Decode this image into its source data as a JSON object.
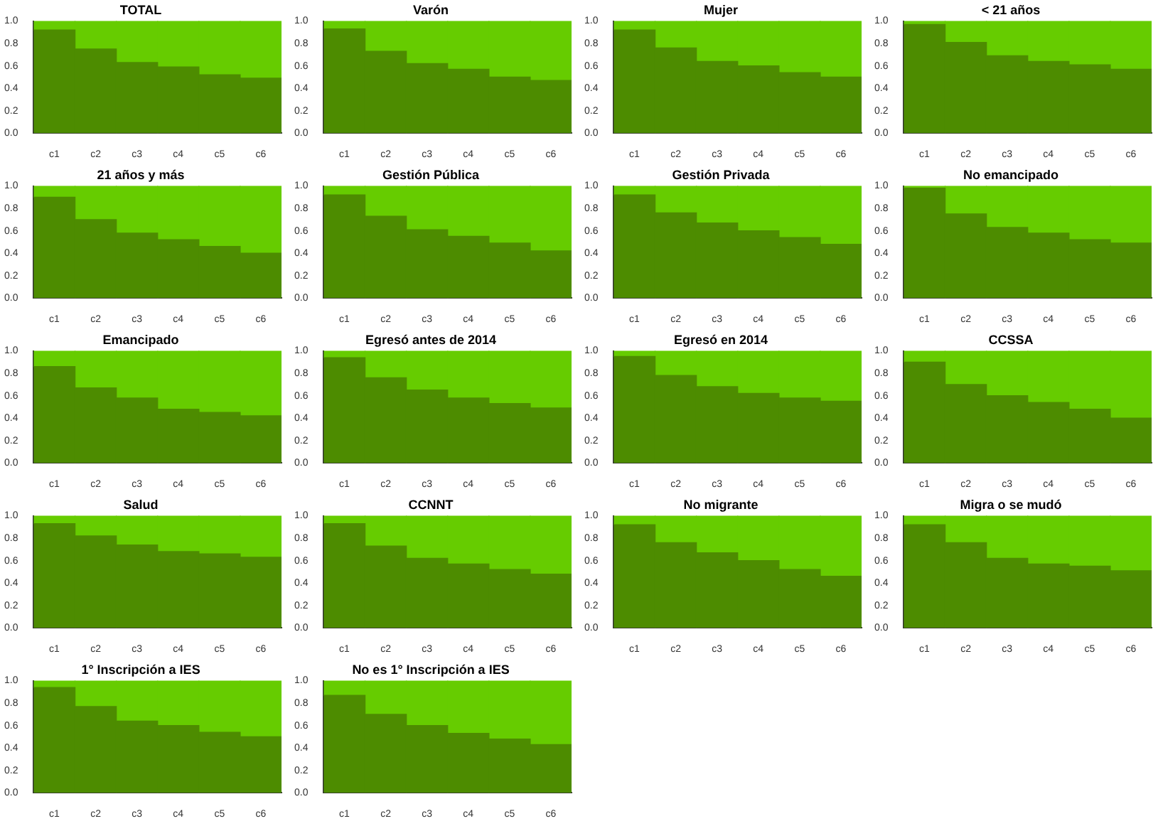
{
  "chart_data": [
    {
      "type": "bar",
      "title": "TOTAL",
      "stacked": true,
      "categories": [
        "c1",
        "c2",
        "c3",
        "c4",
        "c5",
        "c6"
      ],
      "series": [
        {
          "color": "#4d8c00",
          "values": [
            0.92,
            0.75,
            0.63,
            0.59,
            0.52,
            0.49
          ]
        },
        {
          "color": "#66cc00",
          "values": [
            0.08,
            0.25,
            0.37,
            0.41,
            0.48,
            0.51
          ]
        }
      ],
      "ylim": [
        0,
        1
      ],
      "yticks": [
        {
          "value": 0,
          "label": "0.0"
        },
        {
          "value": 0.2,
          "label": "0.2"
        },
        {
          "value": 0.4,
          "label": "0.4"
        },
        {
          "value": 0.6,
          "label": "0.6"
        },
        {
          "value": 0.8,
          "label": "0.8"
        },
        {
          "value": 1,
          "label": "1.0"
        }
      ],
      "grid": false,
      "legend": false
    },
    {
      "type": "bar",
      "title": "Varón",
      "stacked": true,
      "categories": [
        "c1",
        "c2",
        "c3",
        "c4",
        "c5",
        "c6"
      ],
      "series": [
        {
          "color": "#4d8c00",
          "values": [
            0.93,
            0.73,
            0.62,
            0.57,
            0.5,
            0.47
          ]
        },
        {
          "color": "#66cc00",
          "values": [
            0.07,
            0.27,
            0.38,
            0.43,
            0.5,
            0.53
          ]
        }
      ],
      "ylim": [
        0,
        1
      ],
      "yticks": [
        {
          "value": 0,
          "label": "0.0"
        },
        {
          "value": 0.2,
          "label": "0.2"
        },
        {
          "value": 0.4,
          "label": "0.4"
        },
        {
          "value": 0.6,
          "label": "0.6"
        },
        {
          "value": 0.8,
          "label": "0.8"
        },
        {
          "value": 1,
          "label": "1.0"
        }
      ],
      "grid": false,
      "legend": false
    },
    {
      "type": "bar",
      "title": "Mujer",
      "stacked": true,
      "categories": [
        "c1",
        "c2",
        "c3",
        "c4",
        "c5",
        "c6"
      ],
      "series": [
        {
          "color": "#4d8c00",
          "values": [
            0.92,
            0.76,
            0.64,
            0.6,
            0.54,
            0.5
          ]
        },
        {
          "color": "#66cc00",
          "values": [
            0.08,
            0.24,
            0.36,
            0.4,
            0.46,
            0.5
          ]
        }
      ],
      "ylim": [
        0,
        1
      ],
      "yticks": [
        {
          "value": 0,
          "label": "0.0"
        },
        {
          "value": 0.2,
          "label": "0.2"
        },
        {
          "value": 0.4,
          "label": "0.4"
        },
        {
          "value": 0.6,
          "label": "0.6"
        },
        {
          "value": 0.8,
          "label": "0.8"
        },
        {
          "value": 1,
          "label": "1.0"
        }
      ],
      "grid": false,
      "legend": false
    },
    {
      "type": "bar",
      "title": "< 21 años",
      "stacked": true,
      "categories": [
        "c1",
        "c2",
        "c3",
        "c4",
        "c5",
        "c6"
      ],
      "series": [
        {
          "color": "#4d8c00",
          "values": [
            0.97,
            0.81,
            0.69,
            0.64,
            0.61,
            0.57
          ]
        },
        {
          "color": "#66cc00",
          "values": [
            0.03,
            0.19,
            0.31,
            0.36,
            0.39,
            0.43
          ]
        }
      ],
      "ylim": [
        0,
        1
      ],
      "yticks": [
        {
          "value": 0,
          "label": "0.0"
        },
        {
          "value": 0.2,
          "label": "0.2"
        },
        {
          "value": 0.4,
          "label": "0.4"
        },
        {
          "value": 0.6,
          "label": "0.6"
        },
        {
          "value": 0.8,
          "label": "0.8"
        },
        {
          "value": 1,
          "label": "1.0"
        }
      ],
      "grid": false,
      "legend": false
    },
    {
      "type": "bar",
      "title": "21 años y más",
      "stacked": true,
      "categories": [
        "c1",
        "c2",
        "c3",
        "c4",
        "c5",
        "c6"
      ],
      "series": [
        {
          "color": "#4d8c00",
          "values": [
            0.9,
            0.7,
            0.58,
            0.52,
            0.46,
            0.4
          ]
        },
        {
          "color": "#66cc00",
          "values": [
            0.1,
            0.3,
            0.42,
            0.48,
            0.54,
            0.6
          ]
        }
      ],
      "ylim": [
        0,
        1
      ],
      "yticks": [
        {
          "value": 0,
          "label": "0.0"
        },
        {
          "value": 0.2,
          "label": "0.2"
        },
        {
          "value": 0.4,
          "label": "0.4"
        },
        {
          "value": 0.6,
          "label": "0.6"
        },
        {
          "value": 0.8,
          "label": "0.8"
        },
        {
          "value": 1,
          "label": "1.0"
        }
      ],
      "grid": false,
      "legend": false
    },
    {
      "type": "bar",
      "title": "Gestión Pública",
      "stacked": true,
      "categories": [
        "c1",
        "c2",
        "c3",
        "c4",
        "c5",
        "c6"
      ],
      "series": [
        {
          "color": "#4d8c00",
          "values": [
            0.92,
            0.73,
            0.61,
            0.55,
            0.49,
            0.42
          ]
        },
        {
          "color": "#66cc00",
          "values": [
            0.08,
            0.27,
            0.39,
            0.45,
            0.51,
            0.58
          ]
        }
      ],
      "ylim": [
        0,
        1
      ],
      "yticks": [
        {
          "value": 0,
          "label": "0.0"
        },
        {
          "value": 0.2,
          "label": "0.2"
        },
        {
          "value": 0.4,
          "label": "0.4"
        },
        {
          "value": 0.6,
          "label": "0.6"
        },
        {
          "value": 0.8,
          "label": "0.8"
        },
        {
          "value": 1,
          "label": "1.0"
        }
      ],
      "grid": false,
      "legend": false
    },
    {
      "type": "bar",
      "title": "Gestión Privada",
      "stacked": true,
      "categories": [
        "c1",
        "c2",
        "c3",
        "c4",
        "c5",
        "c6"
      ],
      "series": [
        {
          "color": "#4d8c00",
          "values": [
            0.92,
            0.76,
            0.67,
            0.6,
            0.54,
            0.48
          ]
        },
        {
          "color": "#66cc00",
          "values": [
            0.08,
            0.24,
            0.33,
            0.4,
            0.46,
            0.52
          ]
        }
      ],
      "ylim": [
        0,
        1
      ],
      "yticks": [
        {
          "value": 0,
          "label": "0.0"
        },
        {
          "value": 0.2,
          "label": "0.2"
        },
        {
          "value": 0.4,
          "label": "0.4"
        },
        {
          "value": 0.6,
          "label": "0.6"
        },
        {
          "value": 0.8,
          "label": "0.8"
        },
        {
          "value": 1,
          "label": "1.0"
        }
      ],
      "grid": false,
      "legend": false
    },
    {
      "type": "bar",
      "title": "No emancipado",
      "stacked": true,
      "categories": [
        "c1",
        "c2",
        "c3",
        "c4",
        "c5",
        "c6"
      ],
      "series": [
        {
          "color": "#4d8c00",
          "values": [
            0.98,
            0.75,
            0.63,
            0.58,
            0.52,
            0.49
          ]
        },
        {
          "color": "#66cc00",
          "values": [
            0.02,
            0.25,
            0.37,
            0.42,
            0.48,
            0.51
          ]
        }
      ],
      "ylim": [
        0,
        1
      ],
      "yticks": [
        {
          "value": 0,
          "label": "0.0"
        },
        {
          "value": 0.2,
          "label": "0.2"
        },
        {
          "value": 0.4,
          "label": "0.4"
        },
        {
          "value": 0.6,
          "label": "0.6"
        },
        {
          "value": 0.8,
          "label": "0.8"
        },
        {
          "value": 1,
          "label": "1.0"
        }
      ],
      "grid": false,
      "legend": false
    },
    {
      "type": "bar",
      "title": "Emancipado",
      "stacked": true,
      "categories": [
        "c1",
        "c2",
        "c3",
        "c4",
        "c5",
        "c6"
      ],
      "series": [
        {
          "color": "#4d8c00",
          "values": [
            0.86,
            0.67,
            0.58,
            0.48,
            0.45,
            0.42
          ]
        },
        {
          "color": "#66cc00",
          "values": [
            0.14,
            0.33,
            0.42,
            0.52,
            0.55,
            0.58
          ]
        }
      ],
      "ylim": [
        0,
        1
      ],
      "yticks": [
        {
          "value": 0,
          "label": "0.0"
        },
        {
          "value": 0.2,
          "label": "0.2"
        },
        {
          "value": 0.4,
          "label": "0.4"
        },
        {
          "value": 0.6,
          "label": "0.6"
        },
        {
          "value": 0.8,
          "label": "0.8"
        },
        {
          "value": 1,
          "label": "1.0"
        }
      ],
      "grid": false,
      "legend": false
    },
    {
      "type": "bar",
      "title": "Egresó antes de 2014",
      "stacked": true,
      "categories": [
        "c1",
        "c2",
        "c3",
        "c4",
        "c5",
        "c6"
      ],
      "series": [
        {
          "color": "#4d8c00",
          "values": [
            0.94,
            0.76,
            0.65,
            0.58,
            0.53,
            0.49
          ]
        },
        {
          "color": "#66cc00",
          "values": [
            0.06,
            0.24,
            0.35,
            0.42,
            0.47,
            0.51
          ]
        }
      ],
      "ylim": [
        0,
        1
      ],
      "yticks": [
        {
          "value": 0,
          "label": "0.0"
        },
        {
          "value": 0.2,
          "label": "0.2"
        },
        {
          "value": 0.4,
          "label": "0.4"
        },
        {
          "value": 0.6,
          "label": "0.6"
        },
        {
          "value": 0.8,
          "label": "0.8"
        },
        {
          "value": 1,
          "label": "1.0"
        }
      ],
      "grid": false,
      "legend": false
    },
    {
      "type": "bar",
      "title": "Egresó en 2014",
      "stacked": true,
      "categories": [
        "c1",
        "c2",
        "c3",
        "c4",
        "c5",
        "c6"
      ],
      "series": [
        {
          "color": "#4d8c00",
          "values": [
            0.95,
            0.78,
            0.68,
            0.62,
            0.58,
            0.55
          ]
        },
        {
          "color": "#66cc00",
          "values": [
            0.05,
            0.22,
            0.32,
            0.38,
            0.42,
            0.45
          ]
        }
      ],
      "ylim": [
        0,
        1
      ],
      "yticks": [
        {
          "value": 0,
          "label": "0.0"
        },
        {
          "value": 0.2,
          "label": "0.2"
        },
        {
          "value": 0.4,
          "label": "0.4"
        },
        {
          "value": 0.6,
          "label": "0.6"
        },
        {
          "value": 0.8,
          "label": "0.8"
        },
        {
          "value": 1,
          "label": "1.0"
        }
      ],
      "grid": false,
      "legend": false
    },
    {
      "type": "bar",
      "title": "CCSSA",
      "stacked": true,
      "categories": [
        "c1",
        "c2",
        "c3",
        "c4",
        "c5",
        "c6"
      ],
      "series": [
        {
          "color": "#4d8c00",
          "values": [
            0.9,
            0.7,
            0.6,
            0.54,
            0.48,
            0.4
          ]
        },
        {
          "color": "#66cc00",
          "values": [
            0.1,
            0.3,
            0.4,
            0.46,
            0.52,
            0.6
          ]
        }
      ],
      "ylim": [
        0,
        1
      ],
      "yticks": [
        {
          "value": 0,
          "label": "0.0"
        },
        {
          "value": 0.2,
          "label": "0.2"
        },
        {
          "value": 0.4,
          "label": "0.4"
        },
        {
          "value": 0.6,
          "label": "0.6"
        },
        {
          "value": 0.8,
          "label": "0.8"
        },
        {
          "value": 1,
          "label": "1.0"
        }
      ],
      "grid": false,
      "legend": false
    },
    {
      "type": "bar",
      "title": "Salud",
      "stacked": true,
      "categories": [
        "c1",
        "c2",
        "c3",
        "c4",
        "c5",
        "c6"
      ],
      "series": [
        {
          "color": "#4d8c00",
          "values": [
            0.93,
            0.82,
            0.74,
            0.68,
            0.66,
            0.63
          ]
        },
        {
          "color": "#66cc00",
          "values": [
            0.07,
            0.18,
            0.26,
            0.32,
            0.34,
            0.37
          ]
        }
      ],
      "ylim": [
        0,
        1
      ],
      "yticks": [
        {
          "value": 0,
          "label": "0.0"
        },
        {
          "value": 0.2,
          "label": "0.2"
        },
        {
          "value": 0.4,
          "label": "0.4"
        },
        {
          "value": 0.6,
          "label": "0.6"
        },
        {
          "value": 0.8,
          "label": "0.8"
        },
        {
          "value": 1,
          "label": "1.0"
        }
      ],
      "grid": false,
      "legend": false
    },
    {
      "type": "bar",
      "title": "CCNNT",
      "stacked": true,
      "categories": [
        "c1",
        "c2",
        "c3",
        "c4",
        "c5",
        "c6"
      ],
      "series": [
        {
          "color": "#4d8c00",
          "values": [
            0.93,
            0.73,
            0.62,
            0.57,
            0.52,
            0.48
          ]
        },
        {
          "color": "#66cc00",
          "values": [
            0.07,
            0.27,
            0.38,
            0.43,
            0.48,
            0.52
          ]
        }
      ],
      "ylim": [
        0,
        1
      ],
      "yticks": [
        {
          "value": 0,
          "label": "0.0"
        },
        {
          "value": 0.2,
          "label": "0.2"
        },
        {
          "value": 0.4,
          "label": "0.4"
        },
        {
          "value": 0.6,
          "label": "0.6"
        },
        {
          "value": 0.8,
          "label": "0.8"
        },
        {
          "value": 1,
          "label": "1.0"
        }
      ],
      "grid": false,
      "legend": false
    },
    {
      "type": "bar",
      "title": "No migrante",
      "stacked": true,
      "categories": [
        "c1",
        "c2",
        "c3",
        "c4",
        "c5",
        "c6"
      ],
      "series": [
        {
          "color": "#4d8c00",
          "values": [
            0.92,
            0.76,
            0.67,
            0.6,
            0.52,
            0.46
          ]
        },
        {
          "color": "#66cc00",
          "values": [
            0.08,
            0.24,
            0.33,
            0.4,
            0.48,
            0.54
          ]
        }
      ],
      "ylim": [
        0,
        1
      ],
      "yticks": [
        {
          "value": 0,
          "label": "0.0"
        },
        {
          "value": 0.2,
          "label": "0.2"
        },
        {
          "value": 0.4,
          "label": "0.4"
        },
        {
          "value": 0.6,
          "label": "0.6"
        },
        {
          "value": 0.8,
          "label": "0.8"
        },
        {
          "value": 1,
          "label": "1.0"
        }
      ],
      "grid": false,
      "legend": false
    },
    {
      "type": "bar",
      "title": "Migra o se mudó",
      "stacked": true,
      "categories": [
        "c1",
        "c2",
        "c3",
        "c4",
        "c5",
        "c6"
      ],
      "series": [
        {
          "color": "#4d8c00",
          "values": [
            0.92,
            0.76,
            0.62,
            0.57,
            0.55,
            0.51
          ]
        },
        {
          "color": "#66cc00",
          "values": [
            0.08,
            0.24,
            0.38,
            0.43,
            0.45,
            0.49
          ]
        }
      ],
      "ylim": [
        0,
        1
      ],
      "yticks": [
        {
          "value": 0,
          "label": "0.0"
        },
        {
          "value": 0.2,
          "label": "0.2"
        },
        {
          "value": 0.4,
          "label": "0.4"
        },
        {
          "value": 0.6,
          "label": "0.6"
        },
        {
          "value": 0.8,
          "label": "0.8"
        },
        {
          "value": 1,
          "label": "1.0"
        }
      ],
      "grid": false,
      "legend": false
    },
    {
      "type": "bar",
      "title": "1° Inscripción a IES",
      "stacked": true,
      "categories": [
        "c1",
        "c2",
        "c3",
        "c4",
        "c5",
        "c6"
      ],
      "series": [
        {
          "color": "#4d8c00",
          "values": [
            0.94,
            0.77,
            0.64,
            0.6,
            0.54,
            0.5
          ]
        },
        {
          "color": "#66cc00",
          "values": [
            0.06,
            0.23,
            0.36,
            0.4,
            0.46,
            0.5
          ]
        }
      ],
      "ylim": [
        0,
        1
      ],
      "yticks": [
        {
          "value": 0,
          "label": "0.0"
        },
        {
          "value": 0.2,
          "label": "0.2"
        },
        {
          "value": 0.4,
          "label": "0.4"
        },
        {
          "value": 0.6,
          "label": "0.6"
        },
        {
          "value": 0.8,
          "label": "0.8"
        },
        {
          "value": 1,
          "label": "1.0"
        }
      ],
      "grid": false,
      "legend": false
    },
    {
      "type": "bar",
      "title": "No es 1° Inscripción a IES",
      "stacked": true,
      "categories": [
        "c1",
        "c2",
        "c3",
        "c4",
        "c5",
        "c6"
      ],
      "series": [
        {
          "color": "#4d8c00",
          "values": [
            0.87,
            0.7,
            0.6,
            0.53,
            0.48,
            0.43
          ]
        },
        {
          "color": "#66cc00",
          "values": [
            0.13,
            0.3,
            0.4,
            0.47,
            0.52,
            0.57
          ]
        }
      ],
      "ylim": [
        0,
        1
      ],
      "yticks": [
        {
          "value": 0,
          "label": "0.0"
        },
        {
          "value": 0.2,
          "label": "0.2"
        },
        {
          "value": 0.4,
          "label": "0.4"
        },
        {
          "value": 0.6,
          "label": "0.6"
        },
        {
          "value": 0.8,
          "label": "0.8"
        },
        {
          "value": 1,
          "label": "1.0"
        }
      ],
      "grid": false,
      "legend": false
    }
  ]
}
